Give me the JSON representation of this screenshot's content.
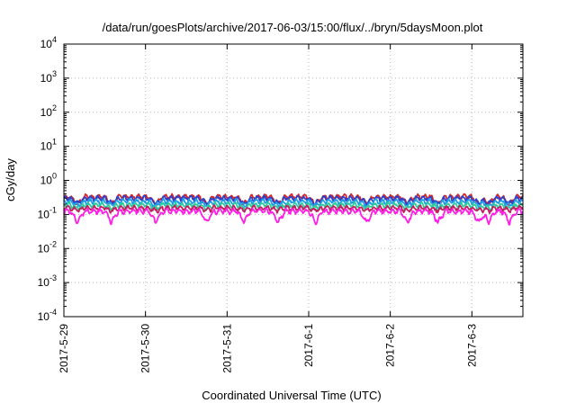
{
  "chart_data": {
    "type": "line",
    "title": "/data/run/goesPlots/archive/2017-06-03/15:00/flux/../bryn/5daysMoon.plot",
    "xlabel": "Coordinated Universal Time (UTC)",
    "ylabel": "cGy/day",
    "yscale": "log",
    "ylim": [
      0.0001,
      10000
    ],
    "y_ticks": [
      {
        "value": 0.0001,
        "base": "10",
        "exp": "-4"
      },
      {
        "value": 0.001,
        "base": "10",
        "exp": "-3"
      },
      {
        "value": 0.01,
        "base": "10",
        "exp": "-2"
      },
      {
        "value": 0.1,
        "base": "10",
        "exp": "-1"
      },
      {
        "value": 1,
        "base": "10",
        "exp": "0"
      },
      {
        "value": 10,
        "base": "10",
        "exp": "1"
      },
      {
        "value": 100,
        "base": "10",
        "exp": "2"
      },
      {
        "value": 1000,
        "base": "10",
        "exp": "3"
      },
      {
        "value": 10000,
        "base": "10",
        "exp": "4"
      }
    ],
    "xlim": [
      "2017-05-29 00:00",
      "2017-06-03 15:00"
    ],
    "x_ticks": [
      "2017-5-29",
      "2017-5-30",
      "2017-5-31",
      "2017-6-1",
      "2017-6-2",
      "2017-6-3"
    ],
    "grid": true,
    "legend": "none",
    "series": [
      {
        "color": "#d62728",
        "level": 0.33,
        "dips": 0.6
      },
      {
        "color": "#3040c8",
        "level": 0.3,
        "dips": 0.7
      },
      {
        "color": "#1f9ee8",
        "level": 0.24,
        "dips": 0.75
      },
      {
        "color": "#2ecc9a",
        "level": 0.19,
        "dips": 0.8
      },
      {
        "color": "#c02060",
        "level": 0.155,
        "dips": 0.85
      },
      {
        "color": "#ff1ee6",
        "level": 0.125,
        "dips": 0.45
      }
    ],
    "dip_days": [
      "2017-05-29 04:00",
      "2017-05-29 14:00",
      "2017-05-30 03:00",
      "2017-05-30 18:00",
      "2017-05-31 05:00",
      "2017-05-31 15:00",
      "2017-06-01 02:00",
      "2017-06-01 17:00",
      "2017-06-02 05:00",
      "2017-06-02 14:00",
      "2017-06-03 02:00",
      "2017-06-03 05:00",
      "2017-06-03 11:00"
    ]
  }
}
